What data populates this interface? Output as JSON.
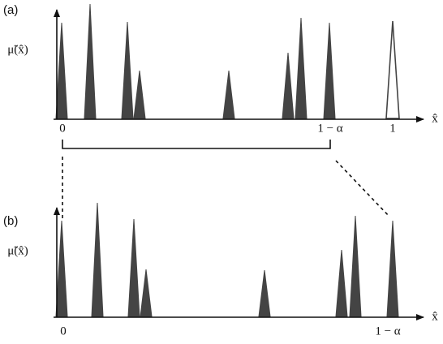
{
  "panel_a": {
    "label": "(a)",
    "y_label": "μ̃(x̂)",
    "x_label": "x̂",
    "ticks": [
      "0",
      "1 − α",
      "1"
    ]
  },
  "panel_b": {
    "label": "(b)",
    "y_label": "μ̃(x̂)",
    "x_label": "x̂",
    "ticks": [
      "0",
      "1 − α"
    ]
  }
}
